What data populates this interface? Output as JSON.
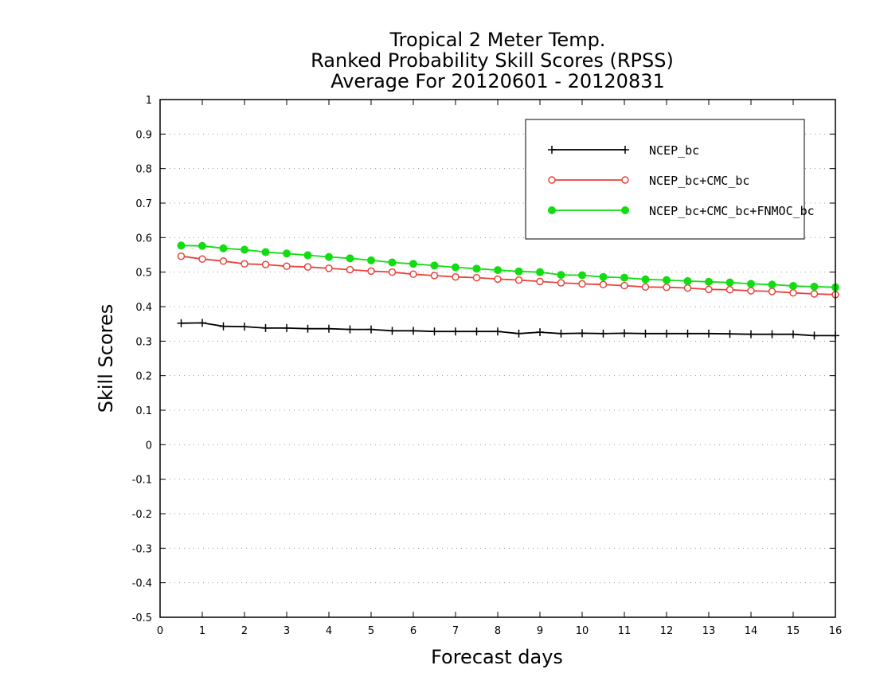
{
  "chart_data": {
    "type": "line",
    "title": [
      "Tropical 2 Meter Temp.",
      "Ranked Probability Skill Scores (RPSS)",
      "Average For 20120601 - 20120831"
    ],
    "xlabel": "Forecast days",
    "ylabel": "Skill Scores",
    "xlim": [
      0,
      16
    ],
    "ylim": [
      -0.5,
      1
    ],
    "xticks": [
      "0",
      "1",
      "2",
      "3",
      "4",
      "5",
      "6",
      "7",
      "8",
      "9",
      "10",
      "11",
      "12",
      "13",
      "14",
      "15",
      "16"
    ],
    "yticks": [
      "1",
      "0.9",
      "0.8",
      "0.7",
      "0.6",
      "0.5",
      "0.4",
      "0.3",
      "0.2",
      "0.1",
      "0",
      "-0.1",
      "-0.2",
      "-0.3",
      "-0.4",
      "-0.5"
    ],
    "grid": "horizontal dotted",
    "legend_position": "top-right",
    "x": [
      0.5,
      1,
      1.5,
      2,
      2.5,
      3,
      3.5,
      4,
      4.5,
      5,
      5.5,
      6,
      6.5,
      7,
      7.5,
      8,
      8.5,
      9,
      9.5,
      10,
      10.5,
      11,
      11.5,
      12,
      12.5,
      13,
      13.5,
      14,
      14.5,
      15,
      15.5,
      16
    ],
    "series": [
      {
        "name": "NCEP_bc",
        "color": "#000000",
        "marker": "plus",
        "values": [
          0.352,
          0.353,
          0.343,
          0.342,
          0.338,
          0.338,
          0.336,
          0.336,
          0.334,
          0.334,
          0.33,
          0.33,
          0.328,
          0.328,
          0.328,
          0.328,
          0.322,
          0.326,
          0.322,
          0.323,
          0.322,
          0.323,
          0.322,
          0.322,
          0.322,
          0.322,
          0.321,
          0.32,
          0.32,
          0.32,
          0.316,
          0.316
        ]
      },
      {
        "name": "NCEP_bc+CMC_bc",
        "color": "#e8433c",
        "marker": "open-circle",
        "values": [
          0.546,
          0.538,
          0.532,
          0.524,
          0.522,
          0.517,
          0.515,
          0.511,
          0.507,
          0.503,
          0.5,
          0.494,
          0.49,
          0.486,
          0.484,
          0.48,
          0.477,
          0.473,
          0.469,
          0.466,
          0.464,
          0.461,
          0.457,
          0.456,
          0.454,
          0.45,
          0.449,
          0.446,
          0.444,
          0.44,
          0.437,
          0.435
        ]
      },
      {
        "name": "NCEP_bc+CMC_bc+FNMOC_bc",
        "color": "#11dd11",
        "marker": "filled-circle",
        "values": [
          0.577,
          0.576,
          0.569,
          0.565,
          0.558,
          0.554,
          0.549,
          0.544,
          0.54,
          0.534,
          0.528,
          0.524,
          0.519,
          0.514,
          0.51,
          0.506,
          0.502,
          0.5,
          0.492,
          0.491,
          0.486,
          0.484,
          0.479,
          0.477,
          0.474,
          0.472,
          0.47,
          0.466,
          0.464,
          0.46,
          0.458,
          0.456
        ]
      }
    ]
  }
}
